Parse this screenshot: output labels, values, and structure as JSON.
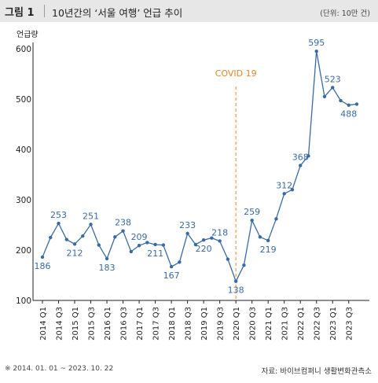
{
  "header": {
    "fig_label": "그림 1",
    "title": "10년간의 ‘서울 여행’ 언급 추이",
    "unit": "(단위: 10만 건)"
  },
  "footer": {
    "note": "※ 2014. 01. 01 ~ 2023. 10. 22",
    "source": "자료: 바이브컴퍼니 생활변화관측소"
  },
  "colors": {
    "line": "#3a6aa5",
    "annotation": "#e8862a",
    "axis": "#222222",
    "background": "#ffffff",
    "header_bg": "#e7e7e7"
  },
  "chart_data": {
    "type": "line",
    "ylabel": "언급량",
    "xlabel": "",
    "ylim": [
      100,
      600
    ],
    "yticks": [
      100,
      200,
      300,
      400,
      500,
      600
    ],
    "grid": false,
    "x": [
      "2014 Q1",
      "2014 Q2",
      "2014 Q3",
      "2014 Q4",
      "2015 Q1",
      "2015 Q2",
      "2015 Q3",
      "2015 Q4",
      "2016 Q1",
      "2016 Q2",
      "2016 Q3",
      "2016 Q4",
      "2017 Q1",
      "2017 Q2",
      "2017 Q3",
      "2017 Q4",
      "2018 Q1",
      "2018 Q2",
      "2018 Q3",
      "2018 Q4",
      "2019 Q1",
      "2019 Q2",
      "2019 Q3",
      "2019 Q4",
      "2020 Q1",
      "2020 Q2",
      "2020 Q3",
      "2020 Q4",
      "2021 Q1",
      "2021 Q2",
      "2021 Q3",
      "2021 Q4",
      "2022 Q1",
      "2022 Q2",
      "2022 Q3",
      "2022 Q4",
      "2023 Q1",
      "2023 Q2",
      "2023 Q3",
      "2023 Q4"
    ],
    "xtick_labels": [
      "2014 Q1",
      "2014 Q3",
      "2015 Q1",
      "2015 Q3",
      "2016 Q1",
      "2016 Q3",
      "2017 Q1",
      "2017 Q3",
      "2018 Q1",
      "2018 Q3",
      "2019 Q1",
      "2019 Q3",
      "2020 Q1",
      "2020 Q3",
      "2021 Q1",
      "2021 Q3",
      "2022 Q1",
      "2022 Q3",
      "2023 Q1",
      "2023 Q3"
    ],
    "values": [
      186,
      225,
      253,
      221,
      212,
      228,
      251,
      210,
      183,
      226,
      238,
      197,
      209,
      215,
      211,
      210,
      167,
      176,
      233,
      211,
      220,
      224,
      218,
      182,
      138,
      170,
      259,
      226,
      219,
      262,
      312,
      320,
      368,
      387,
      595,
      505,
      523,
      497,
      488,
      490
    ],
    "data_labels": [
      {
        "index": 0,
        "text": "186",
        "pos": "below"
      },
      {
        "index": 2,
        "text": "253",
        "pos": "above"
      },
      {
        "index": 4,
        "text": "212",
        "pos": "below"
      },
      {
        "index": 6,
        "text": "251",
        "pos": "above"
      },
      {
        "index": 8,
        "text": "183",
        "pos": "below"
      },
      {
        "index": 10,
        "text": "238",
        "pos": "above"
      },
      {
        "index": 12,
        "text": "209",
        "pos": "above"
      },
      {
        "index": 14,
        "text": "211",
        "pos": "below"
      },
      {
        "index": 16,
        "text": "167",
        "pos": "below"
      },
      {
        "index": 18,
        "text": "233",
        "pos": "above"
      },
      {
        "index": 20,
        "text": "220",
        "pos": "below"
      },
      {
        "index": 22,
        "text": "218",
        "pos": "above"
      },
      {
        "index": 24,
        "text": "138",
        "pos": "below"
      },
      {
        "index": 26,
        "text": "259",
        "pos": "above"
      },
      {
        "index": 28,
        "text": "219",
        "pos": "below"
      },
      {
        "index": 30,
        "text": "312",
        "pos": "above"
      },
      {
        "index": 32,
        "text": "368",
        "pos": "above"
      },
      {
        "index": 34,
        "text": "595",
        "pos": "above"
      },
      {
        "index": 36,
        "text": "523",
        "pos": "above"
      },
      {
        "index": 38,
        "text": "488",
        "pos": "below"
      }
    ],
    "annotation": {
      "text": "COVID 19",
      "at_index": 24
    }
  }
}
